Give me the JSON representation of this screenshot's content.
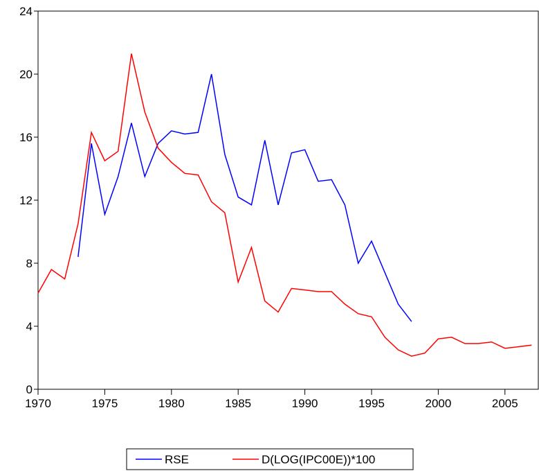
{
  "chart_data": {
    "type": "line",
    "x": [
      1970,
      1971,
      1972,
      1973,
      1974,
      1975,
      1976,
      1977,
      1978,
      1979,
      1980,
      1981,
      1982,
      1983,
      1984,
      1985,
      1986,
      1987,
      1988,
      1989,
      1990,
      1991,
      1992,
      1993,
      1994,
      1995,
      1996,
      1997,
      1998,
      1999,
      2000,
      2001,
      2002,
      2003,
      2004,
      2005,
      2006,
      2007
    ],
    "series": [
      {
        "name": "RSE",
        "color": "#0000ff",
        "values": [
          null,
          null,
          null,
          8.4,
          15.6,
          11.1,
          13.5,
          16.9,
          13.5,
          15.6,
          16.4,
          16.2,
          16.3,
          20.0,
          14.9,
          12.2,
          11.7,
          15.8,
          11.7,
          15.0,
          15.2,
          13.2,
          13.3,
          11.7,
          8.0,
          9.4,
          7.4,
          5.4,
          4.3,
          null,
          null,
          null,
          null,
          null,
          null,
          null,
          null,
          null
        ]
      },
      {
        "name": "D(LOG(IPC00E))*100",
        "color": "#ff0000",
        "values": [
          6.1,
          7.6,
          7.0,
          10.5,
          16.3,
          14.5,
          15.1,
          21.3,
          17.6,
          15.3,
          14.4,
          13.7,
          13.6,
          11.9,
          11.2,
          6.8,
          9.0,
          5.6,
          4.9,
          6.4,
          6.3,
          6.2,
          6.2,
          5.4,
          4.8,
          4.6,
          3.3,
          2.5,
          2.1,
          2.3,
          3.2,
          3.3,
          2.9,
          2.9,
          3.0,
          2.6,
          2.7,
          2.8
        ]
      }
    ],
    "xlim": [
      1970,
      2007.5
    ],
    "xticks": [
      1970,
      1975,
      1980,
      1985,
      1990,
      1995,
      2000,
      2005
    ],
    "ylim": [
      0,
      24
    ],
    "yticks": [
      0,
      4,
      8,
      12,
      16,
      20,
      24
    ],
    "legend": "bottom"
  }
}
